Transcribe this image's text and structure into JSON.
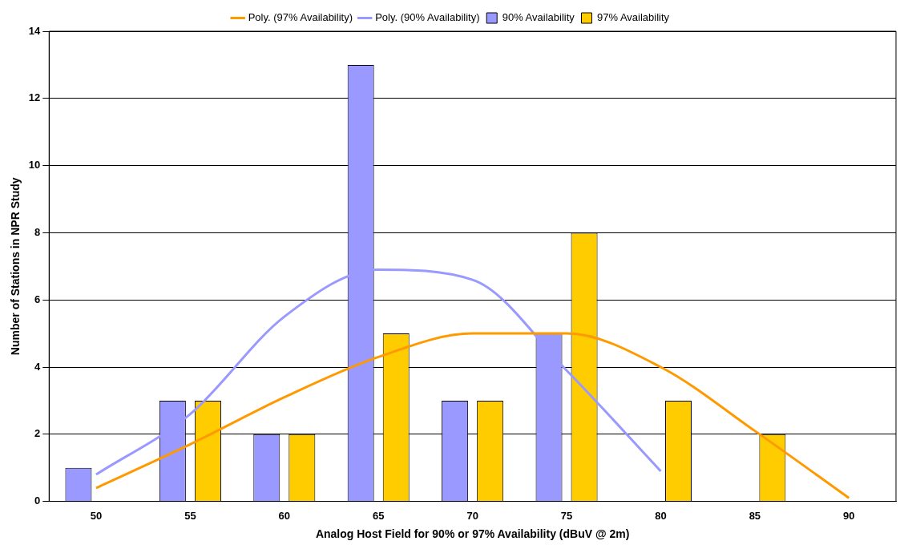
{
  "chart_data": {
    "type": "bar",
    "xlabel": "Analog Host Field for 90% or 97% Availability (dBuV @ 2m)",
    "ylabel": "Number of Stations in NPR Study",
    "categories": [
      "50",
      "55",
      "60",
      "65",
      "70",
      "75",
      "80",
      "85",
      "90"
    ],
    "series": [
      {
        "name": "90% Availability",
        "color": "#9999ff",
        "values": [
          1,
          3,
          2,
          13,
          3,
          5,
          0,
          0,
          0
        ]
      },
      {
        "name": "97% Availability",
        "color": "#ffcc00",
        "values": [
          0,
          3,
          2,
          5,
          3,
          8,
          3,
          2,
          0
        ]
      },
      {
        "name": "Poly. (97% Availability)",
        "type": "line",
        "color": "#ff9900",
        "values": [
          0.4,
          1.7,
          3.1,
          4.3,
          5.0,
          5.0,
          4.0,
          2.1,
          0.1
        ]
      },
      {
        "name": "Poly. (90% Availability)",
        "type": "line",
        "color": "#9999ff",
        "values": [
          0.8,
          2.6,
          5.5,
          6.9,
          6.6,
          3.9,
          0.9,
          null,
          null
        ]
      }
    ],
    "ylim": [
      0,
      14
    ],
    "yticks": [
      0,
      2,
      4,
      6,
      8,
      10,
      12,
      14
    ],
    "grid": "y",
    "legend": "top"
  }
}
